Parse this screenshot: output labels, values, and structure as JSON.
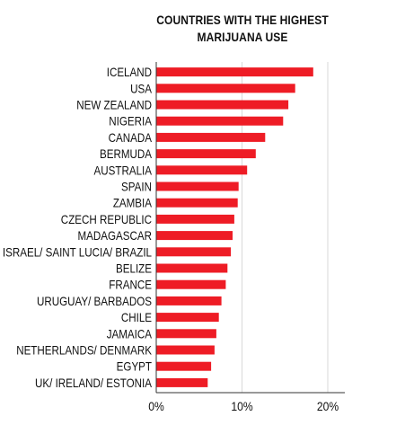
{
  "chart_data": {
    "type": "bar",
    "orientation": "horizontal",
    "title_lines": [
      "COUNTRIES WITH THE HIGHEST",
      "MARIJUANA USE"
    ],
    "categories": [
      "ICELAND",
      "USA",
      "NEW ZEALAND",
      "NIGERIA",
      "CANADA",
      "BERMUDA",
      "AUSTRALIA",
      "SPAIN",
      "ZAMBIA",
      "CZECH REPUBLIC",
      "MADAGASCAR",
      "ISRAEL/ SAINT LUCIA/ BRAZIL",
      "BELIZE",
      "FRANCE",
      "URUGUAY/ BARBADOS",
      "CHILE",
      "JAMAICA",
      "NETHERLANDS/ DENMARK",
      "EGYPT",
      "UK/ IRELAND/ ESTONIA"
    ],
    "values": [
      18.3,
      16.2,
      15.4,
      14.8,
      12.7,
      11.6,
      10.6,
      9.6,
      9.5,
      9.1,
      8.9,
      8.7,
      8.3,
      8.1,
      7.6,
      7.3,
      7.0,
      6.8,
      6.4,
      6.0
    ],
    "x_ticks": [
      0,
      10,
      20
    ],
    "x_tick_labels": [
      "0%",
      "10%",
      "20%"
    ],
    "xlim": [
      0,
      22
    ],
    "unit": "%",
    "grid": "vertical",
    "bar_color": "#ee1c25",
    "legend": "none"
  }
}
